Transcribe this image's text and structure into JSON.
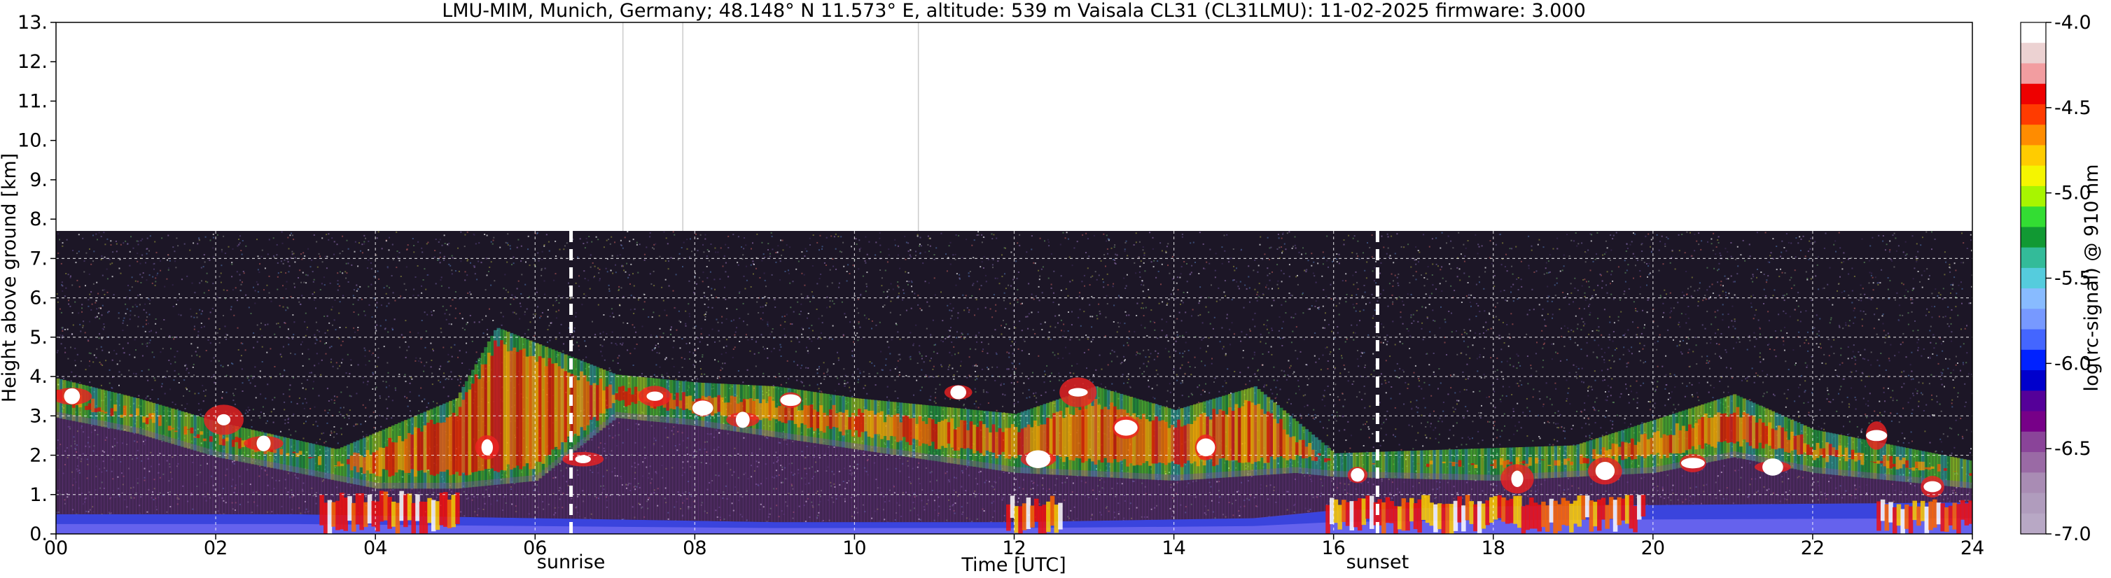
{
  "chart_data": {
    "type": "heatmap",
    "title": "LMU-MIM, Munich, Germany; 48.148° N 11.573° E, altitude: 539 m    Vaisala CL31 (CL31LMU): 11-02-2025    firmware: 3.000",
    "xlabel": "Time [UTC]",
    "ylabel": "Height above ground [km]",
    "xlim": [
      0,
      24
    ],
    "ylim": [
      0,
      13
    ],
    "x_ticks": [
      "00",
      "02",
      "04",
      "06",
      "08",
      "10",
      "12",
      "14",
      "16",
      "18",
      "20",
      "22",
      "24"
    ],
    "y_ticks": [
      "0.",
      "1.",
      "2.",
      "3.",
      "4.",
      "5.",
      "6.",
      "7.",
      "8.",
      "9.",
      "10.",
      "11.",
      "12.",
      "13."
    ],
    "data_top_km": 7.7,
    "grid": true,
    "events": [
      {
        "label": "sunrise",
        "time": 6.45
      },
      {
        "label": "sunset",
        "time": 16.55
      }
    ],
    "colorbar": {
      "label": "log(rc-signal) @ 910 nm",
      "range": [
        -7.0,
        -4.0
      ],
      "ticks": [
        "-4.0",
        "-4.5",
        "-5.0",
        "-5.5",
        "-6.0",
        "-6.5",
        "-7.0"
      ],
      "colors": [
        "#ffffff",
        "#ecd2d2",
        "#f29da0",
        "#ee0000",
        "#ff3b00",
        "#ff8c00",
        "#ffcc00",
        "#f5f500",
        "#a8f500",
        "#33dd33",
        "#119933",
        "#33bb99",
        "#55ccdd",
        "#88bbff",
        "#7799ff",
        "#4466ff",
        "#0022ff",
        "#0000cc",
        "#550099",
        "#770088",
        "#8a4499",
        "#9a6aa5",
        "#a98cb4",
        "#b09cbd",
        "#b8a8c5"
      ]
    },
    "layers": [
      {
        "name": "surface",
        "points": [
          [
            0,
            0.5
          ],
          [
            3,
            0.5
          ],
          [
            6,
            0.4
          ],
          [
            9,
            0.3
          ],
          [
            12,
            0.3
          ],
          [
            15,
            0.4
          ],
          [
            16,
            0.6
          ],
          [
            18,
            0.7
          ],
          [
            24,
            0.8
          ]
        ]
      },
      {
        "name": "boundary-layer top",
        "points": [
          [
            0,
            3.2
          ],
          [
            1,
            2.8
          ],
          [
            2,
            2.2
          ],
          [
            3,
            1.8
          ],
          [
            4,
            1.4
          ],
          [
            5,
            1.4
          ],
          [
            6,
            1.6
          ],
          [
            7,
            3.2
          ],
          [
            8,
            3.0
          ],
          [
            10,
            2.4
          ],
          [
            12,
            1.8
          ],
          [
            14,
            1.6
          ],
          [
            15.5,
            1.8
          ],
          [
            16,
            1.7
          ],
          [
            18,
            1.6
          ],
          [
            20,
            1.8
          ],
          [
            21,
            2.2
          ],
          [
            22,
            1.8
          ],
          [
            24,
            1.4
          ]
        ]
      },
      {
        "name": "upper aerosol / cloud",
        "points": [
          [
            0,
            3.7
          ],
          [
            1,
            3.2
          ],
          [
            2,
            2.6
          ],
          [
            3.5,
            1.9
          ],
          [
            5,
            3.2
          ],
          [
            5.5,
            5.0
          ],
          [
            7,
            3.8
          ],
          [
            8,
            3.6
          ],
          [
            9,
            3.5
          ],
          [
            10,
            3.2
          ],
          [
            11,
            3.0
          ],
          [
            12,
            2.8
          ],
          [
            13,
            3.5
          ],
          [
            14,
            2.9
          ],
          [
            15,
            3.5
          ],
          [
            16,
            1.8
          ],
          [
            19,
            2.0
          ],
          [
            21,
            3.3
          ],
          [
            22,
            2.4
          ],
          [
            24,
            1.6
          ]
        ]
      }
    ]
  }
}
